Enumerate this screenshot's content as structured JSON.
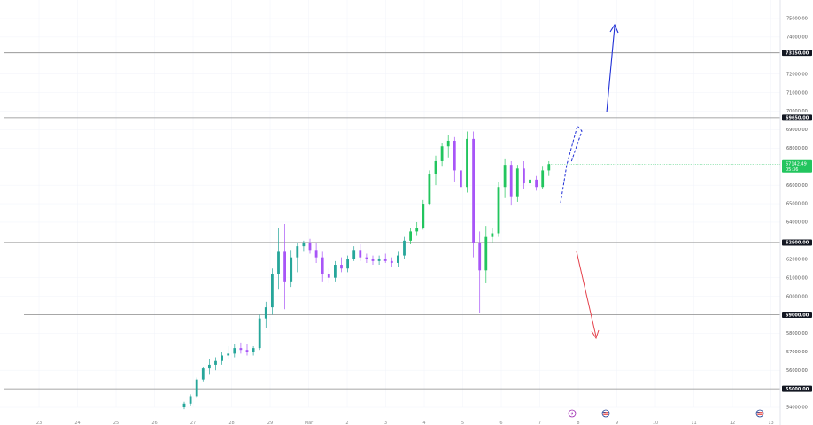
{
  "chart_data": {
    "type": "candlestick",
    "y_axis": {
      "min": 53500,
      "max": 75500,
      "ticks": [
        {
          "value": 75000,
          "label": "75000.00"
        },
        {
          "value": 74000,
          "label": "74000.00"
        },
        {
          "value": 72000,
          "label": "72000.00"
        },
        {
          "value": 71000,
          "label": "71000.00"
        },
        {
          "value": 70000,
          "label": "70000.00"
        },
        {
          "value": 69000,
          "label": "69000.00"
        },
        {
          "value": 68000,
          "label": "68000.00"
        },
        {
          "value": 66000,
          "label": "66000.00"
        },
        {
          "value": 65000,
          "label": "65000.00"
        },
        {
          "value": 64000,
          "label": "64000.00"
        },
        {
          "value": 62000,
          "label": "62000.00"
        },
        {
          "value": 61000,
          "label": "61000.00"
        },
        {
          "value": 60000,
          "label": "60000.00"
        },
        {
          "value": 58000,
          "label": "58000.00"
        },
        {
          "value": 57000,
          "label": "57000.00"
        },
        {
          "value": 56000,
          "label": "56000.00"
        },
        {
          "value": 54000,
          "label": "54000.00"
        }
      ]
    },
    "x_axis": {
      "ticks": [
        "23",
        "24",
        "25",
        "26",
        "27",
        "28",
        "29",
        "Mar",
        "2",
        "3",
        "4",
        "5",
        "6",
        "7",
        "8",
        "9",
        "10",
        "11",
        "12",
        "13"
      ]
    },
    "levels": [
      {
        "value": 73150,
        "label": "73150.00"
      },
      {
        "value": 69650,
        "label": "69650.00"
      },
      {
        "value": 62900,
        "label": "62900.00"
      },
      {
        "value": 59000,
        "label": "59000.00"
      },
      {
        "value": 55000,
        "label": "55000.00"
      }
    ],
    "current_price": {
      "value": 67142.49,
      "label": "67142.49",
      "sublabel": "05:36"
    },
    "candles": [
      {
        "t": "Feb 27",
        "v": [
          54000,
          54300,
          53900,
          54200
        ]
      },
      {
        "t": "Feb 27",
        "v": [
          54200,
          54700,
          54100,
          54600
        ]
      },
      {
        "t": "Feb 27",
        "v": [
          54600,
          55600,
          54500,
          55500
        ]
      },
      {
        "t": "Feb 27",
        "v": [
          55500,
          56200,
          55400,
          56100
        ]
      },
      {
        "t": "Feb 27",
        "v": [
          56100,
          56600,
          55800,
          56300
        ]
      },
      {
        "t": "Feb 27",
        "v": [
          56300,
          56700,
          56000,
          56500
        ]
      },
      {
        "t": "Feb 27",
        "v": [
          56500,
          57000,
          56300,
          56800
        ]
      },
      {
        "t": "Feb 27",
        "v": [
          56800,
          57300,
          56600,
          56900
        ]
      },
      {
        "t": "Feb 28",
        "v": [
          56900,
          57400,
          56700,
          57200
        ]
      },
      {
        "t": "Feb 28",
        "v": [
          57200,
          57500,
          56900,
          57100
        ]
      },
      {
        "t": "Feb 28",
        "v": [
          57100,
          57400,
          56800,
          57000
        ]
      },
      {
        "t": "Feb 28",
        "v": [
          57000,
          57300,
          56800,
          57200
        ]
      },
      {
        "t": "Feb 28",
        "v": [
          57200,
          59000,
          57100,
          58800
        ]
      },
      {
        "t": "Feb 28",
        "v": [
          58800,
          59700,
          58300,
          59400
        ]
      },
      {
        "t": "Feb 28",
        "v": [
          59400,
          61500,
          59000,
          61200
        ]
      },
      {
        "t": "Feb 28",
        "v": [
          61200,
          63700,
          60400,
          62400
        ]
      },
      {
        "t": "Feb 28",
        "v": [
          62400,
          63900,
          59300,
          60800
        ]
      },
      {
        "t": "Feb 29",
        "v": [
          60800,
          62500,
          60500,
          62100
        ]
      },
      {
        "t": "Feb 29",
        "v": [
          62100,
          62900,
          61300,
          62700
        ]
      },
      {
        "t": "Feb 29",
        "v": [
          62700,
          63000,
          62400,
          62900
        ]
      },
      {
        "t": "Feb 29",
        "v": [
          62900,
          63100,
          62300,
          62500
        ]
      },
      {
        "t": "Feb 29",
        "v": [
          62500,
          62900,
          61800,
          62100
        ]
      },
      {
        "t": "Mar 1",
        "v": [
          62100,
          62400,
          60800,
          61200
        ]
      },
      {
        "t": "Mar 1",
        "v": [
          61200,
          61500,
          60700,
          61000
        ]
      },
      {
        "t": "Mar 1",
        "v": [
          61000,
          61900,
          60800,
          61700
        ]
      },
      {
        "t": "Mar 1",
        "v": [
          61700,
          62100,
          61300,
          61500
        ]
      },
      {
        "t": "Mar 1",
        "v": [
          61500,
          62200,
          61300,
          62000
        ]
      },
      {
        "t": "Mar 2",
        "v": [
          62000,
          62700,
          61900,
          62500
        ]
      },
      {
        "t": "Mar 2",
        "v": [
          62500,
          62800,
          61900,
          62100
        ]
      },
      {
        "t": "Mar 2",
        "v": [
          62100,
          62300,
          61800,
          62000
        ]
      },
      {
        "t": "Mar 2",
        "v": [
          62000,
          62200,
          61700,
          61900
        ]
      },
      {
        "t": "Mar 3",
        "v": [
          61900,
          62200,
          61700,
          62000
        ]
      },
      {
        "t": "Mar 3",
        "v": [
          62000,
          62300,
          61800,
          61900
        ]
      },
      {
        "t": "Mar 3",
        "v": [
          61900,
          62100,
          61600,
          61800
        ]
      },
      {
        "t": "Mar 3",
        "v": [
          61800,
          62400,
          61600,
          62200
        ]
      },
      {
        "t": "Mar 4",
        "v": [
          62200,
          63200,
          62000,
          63000
        ]
      },
      {
        "t": "Mar 4",
        "v": [
          63000,
          63700,
          62800,
          63500
        ]
      },
      {
        "t": "Mar 4",
        "v": [
          63500,
          64000,
          63300,
          63700
        ]
      },
      {
        "t": "Mar 4",
        "v": [
          63700,
          65200,
          63600,
          65000
        ]
      },
      {
        "t": "Mar 4",
        "v": [
          65000,
          66800,
          64900,
          66600
        ]
      },
      {
        "t": "Mar 5",
        "v": [
          66600,
          67600,
          66000,
          67300
        ]
      },
      {
        "t": "Mar 5",
        "v": [
          67300,
          68300,
          67000,
          68100
        ]
      },
      {
        "t": "Mar 5",
        "v": [
          68100,
          68700,
          67500,
          68400
        ]
      },
      {
        "t": "Mar 5",
        "v": [
          68400,
          68600,
          66200,
          66800
        ]
      },
      {
        "t": "Mar 5",
        "v": [
          66800,
          67500,
          65400,
          65900
        ]
      },
      {
        "t": "Mar 5",
        "v": [
          65900,
          68900,
          65600,
          68500
        ]
      },
      {
        "t": "Mar 5",
        "v": [
          68500,
          68900,
          62100,
          62900
        ]
      },
      {
        "t": "Mar 5",
        "v": [
          62900,
          63500,
          59100,
          61400
        ]
      },
      {
        "t": "Mar 5",
        "v": [
          61400,
          63800,
          60700,
          63200
        ]
      },
      {
        "t": "Mar 6",
        "v": [
          63200,
          63700,
          62900,
          63400
        ]
      },
      {
        "t": "Mar 6",
        "v": [
          63400,
          66200,
          63200,
          65900
        ]
      },
      {
        "t": "Mar 6",
        "v": [
          65900,
          67400,
          65300,
          67100
        ]
      },
      {
        "t": "Mar 6",
        "v": [
          67100,
          67300,
          64900,
          65400
        ]
      },
      {
        "t": "Mar 6",
        "v": [
          65400,
          67100,
          65100,
          66900
        ]
      },
      {
        "t": "Mar 7",
        "v": [
          66900,
          67300,
          65800,
          66100
        ]
      },
      {
        "t": "Mar 7",
        "v": [
          66100,
          66600,
          65600,
          66300
        ]
      },
      {
        "t": "Mar 7",
        "v": [
          66300,
          66500,
          65700,
          65900
        ]
      },
      {
        "t": "Mar 7",
        "v": [
          65900,
          67000,
          65800,
          66800
        ]
      },
      {
        "t": "Mar 7",
        "v": [
          66800,
          67300,
          66500,
          67142.49
        ]
      }
    ],
    "annotations": [
      {
        "type": "arrow",
        "color": "#1f2fd6",
        "from": [
          67142,
          70000
        ],
        "to": [
          67300,
          74700
        ]
      },
      {
        "type": "arrow",
        "color": "#e5434d",
        "from": [
          67100,
          62500
        ],
        "to": [
          67300,
          58300
        ]
      },
      {
        "type": "dashed-path",
        "color": "#1f2fd6"
      }
    ]
  },
  "colors": {
    "up": "#26a69a",
    "up_bright": "#22c55e",
    "down": "#a855f7",
    "level_line": "#8a8a8a",
    "label_bg": "#131722",
    "current_bg": "#22c55e",
    "grid": "#f0f3fa"
  },
  "icons": [
    "lightning-event-icon",
    "us-flag-event-icon",
    "us-flag-event-icon"
  ]
}
